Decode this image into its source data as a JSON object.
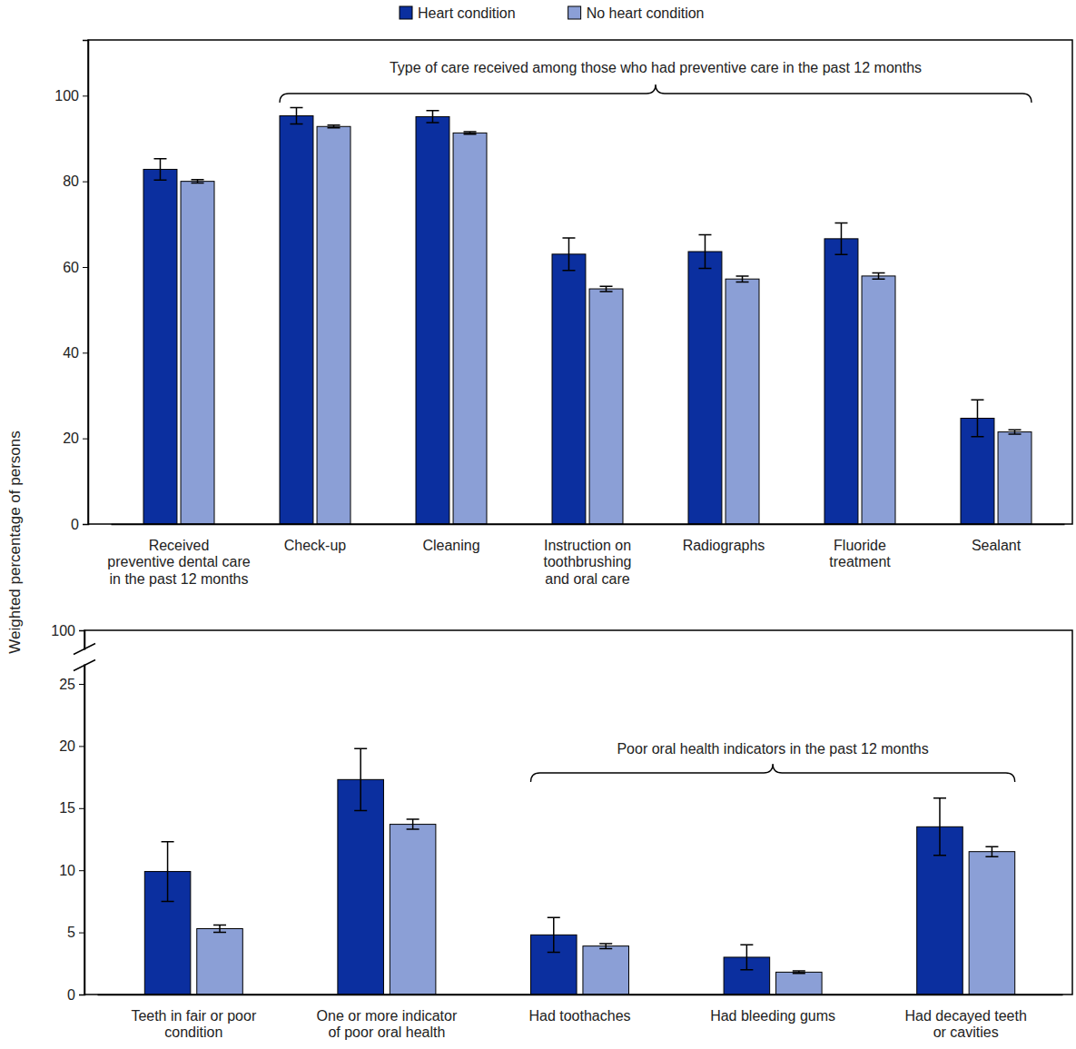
{
  "chart_data": [
    {
      "type": "bar",
      "ylabel": "Weighted percentage of persons",
      "categories": [
        "Received\npreventive dental care\nin the past 12 months",
        "Check-up",
        "Cleaning",
        "Instruction on\ntoothbrushing\nand oral care",
        "Radiographs",
        "Fluoride\ntreatment",
        "Sealant"
      ],
      "series": [
        {
          "name": "Heart condition",
          "color": "#0b2f9f",
          "values": [
            82.8,
            95.3,
            95.1,
            63.0,
            63.6,
            66.6,
            24.7
          ],
          "errors": [
            2.5,
            1.9,
            1.4,
            3.8,
            3.9,
            3.7,
            4.3
          ]
        },
        {
          "name": "No heart condition",
          "color": "#8b9fd6",
          "values": [
            80.0,
            92.8,
            91.3,
            54.9,
            57.2,
            57.9,
            21.5
          ],
          "errors": [
            0.4,
            0.3,
            0.3,
            0.6,
            0.7,
            0.7,
            0.5
          ]
        }
      ],
      "ylim": [
        0,
        113
      ],
      "yticks": [
        0,
        20,
        40,
        60,
        80,
        100
      ],
      "grid": false,
      "legend": "top",
      "annotations": [
        {
          "text": "Type of care received among those who had preventive care in the past 12 months",
          "start": "Check-up",
          "end": "Sealant"
        }
      ]
    },
    {
      "type": "bar",
      "categories": [
        "Teeth in fair or poor\ncondition",
        "One or more indicator\nof poor oral health",
        "Had toothaches",
        "Had bleeding gums",
        "Had decayed teeth\nor cavities"
      ],
      "series": [
        {
          "color": "#0b2f9f",
          "values": [
            9.9,
            17.3,
            4.8,
            3.0,
            13.5
          ],
          "errors": [
            2.4,
            2.5,
            1.4,
            1.0,
            2.3
          ]
        },
        {
          "color": "#8b9fd6",
          "values": [
            5.3,
            13.7,
            3.9,
            1.8,
            11.5
          ],
          "errors": [
            0.3,
            0.4,
            0.2,
            0.1,
            0.4
          ]
        }
      ],
      "ylim": [
        0,
        100
      ],
      "yticks": [
        0,
        5,
        10,
        15,
        20,
        25,
        100
      ],
      "grid": false,
      "annotations": [
        {
          "text": "Poor oral health indicators in the past 12 months",
          "start": "Had toothaches",
          "end": "Had decayed teeth\nor cavities"
        }
      ]
    }
  ]
}
